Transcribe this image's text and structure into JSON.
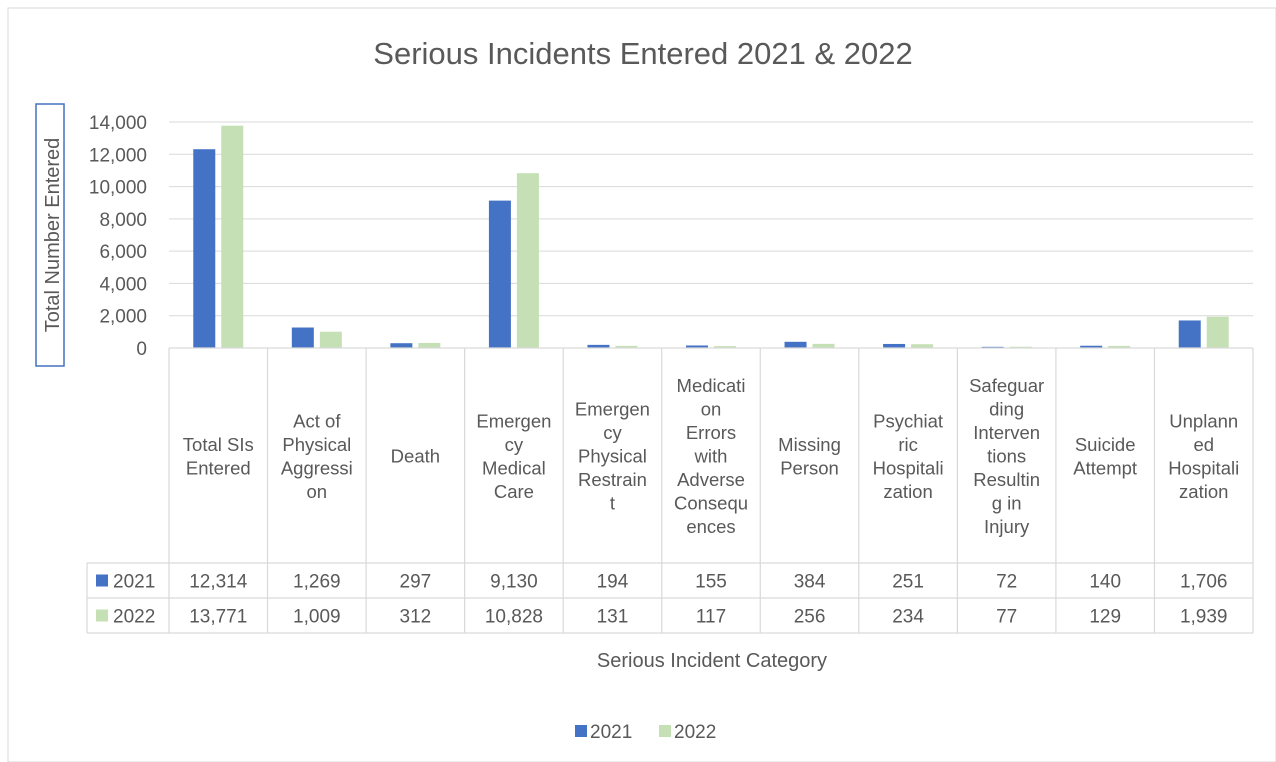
{
  "chart_data": {
    "type": "bar",
    "title": "Serious Incidents Entered 2021 & 2022",
    "xlabel": "Serious Incident Category",
    "ylabel": "Total Number Entered",
    "ylim": [
      0,
      14000
    ],
    "yticks": [
      "0",
      "2,000",
      "4,000",
      "6,000",
      "8,000",
      "10,000",
      "12,000",
      "14,000"
    ],
    "grid": true,
    "legend_position": "bottom",
    "data_table": true,
    "categories": [
      [
        "Total SIs",
        "Entered"
      ],
      [
        "Act of",
        "Physical",
        "Aggressi",
        "on"
      ],
      [
        "Death"
      ],
      [
        "Emergen",
        "cy",
        "Medical",
        "Care"
      ],
      [
        "Emergen",
        "cy",
        "Physical",
        "Restrain",
        "t"
      ],
      [
        "Medicati",
        "on",
        "Errors",
        "with",
        "Adverse",
        "Consequ",
        "ences"
      ],
      [
        "Missing",
        "Person"
      ],
      [
        "Psychiat",
        "ric",
        "Hospitali",
        "zation"
      ],
      [
        "Safeguar",
        "ding",
        "Interven",
        "tions",
        "Resultin",
        "g in",
        "Injury"
      ],
      [
        "Suicide",
        "Attempt"
      ],
      [
        "Unplann",
        "ed",
        "Hospitali",
        "zation"
      ]
    ],
    "series": [
      {
        "name": "2021",
        "color": "#4472c4",
        "values": [
          12314,
          1269,
          297,
          9130,
          194,
          155,
          384,
          251,
          72,
          140,
          1706
        ],
        "labels": [
          "12,314",
          "1,269",
          "297",
          "9,130",
          "194",
          "155",
          "384",
          "251",
          "72",
          "140",
          "1,706"
        ]
      },
      {
        "name": "2022",
        "color": "#c5e0b4",
        "values": [
          13771,
          1009,
          312,
          10828,
          131,
          117,
          256,
          234,
          77,
          129,
          1939
        ],
        "labels": [
          "13,771",
          "1,009",
          "312",
          "10,828",
          "131",
          "117",
          "256",
          "234",
          "77",
          "129",
          "1,939"
        ]
      }
    ]
  }
}
